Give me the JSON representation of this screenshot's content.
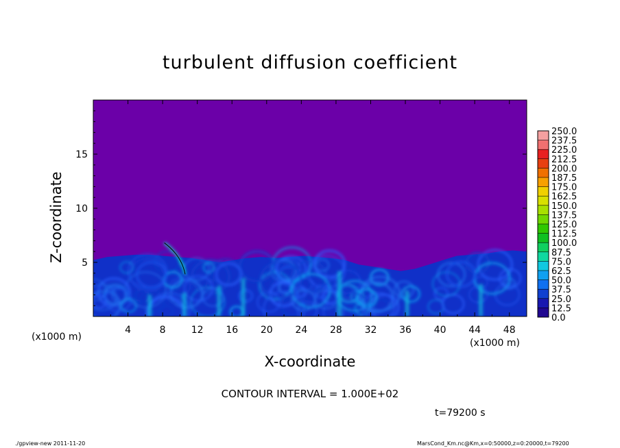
{
  "title": "turbulent diffusion coefficient",
  "chart_data": {
    "type": "heatmap",
    "title": "turbulent diffusion coefficient",
    "xlabel": "X-coordinate",
    "ylabel": "Z-coordinate",
    "x_unit_label": "(x1000 m)",
    "x_unit_label_right": "(x1000 m)",
    "xlim": [
      0,
      50
    ],
    "ylim": [
      0,
      20
    ],
    "x_ticks": [
      "4",
      "8",
      "12",
      "16",
      "20",
      "24",
      "28",
      "32",
      "36",
      "40",
      "44",
      "48"
    ],
    "y_ticks": [
      "5",
      "10",
      "15"
    ],
    "colorbar": {
      "levels": [
        "250.0",
        "237.5",
        "225.0",
        "212.5",
        "200.0",
        "187.5",
        "175.0",
        "162.5",
        "150.0",
        "137.5",
        "125.0",
        "112.5",
        "100.0",
        "87.5",
        "75.0",
        "62.5",
        "50.0",
        "37.5",
        "25.0",
        "12.5",
        "0.0"
      ],
      "colors": [
        "#f4a0a0",
        "#f07070",
        "#e82020",
        "#e84010",
        "#f07000",
        "#f8a000",
        "#f0d000",
        "#d8e000",
        "#a8e000",
        "#70d800",
        "#30c800",
        "#10c020",
        "#10d060",
        "#10d8a0",
        "#10c8e0",
        "#10a0f0",
        "#1070f0",
        "#1040d0",
        "#1818b0",
        "#200890"
      ],
      "background_color": "#6b00a8"
    },
    "boundary_layer_top_km": [
      5.2,
      5.5,
      5.6,
      5.7,
      5.7,
      5.6,
      5.5,
      5.4,
      5.2,
      5.0,
      5.2,
      5.4,
      5.5,
      5.4,
      5.5,
      5.6,
      5.5,
      5.4,
      5.2,
      4.8,
      4.6,
      4.4,
      4.2,
      4.4,
      4.8,
      5.2,
      5.6,
      5.7,
      5.8,
      6.0,
      6.1,
      6.0
    ]
  },
  "contour_interval": "CONTOUR INTERVAL = 1.000E+02",
  "time_label": "t=79200 s",
  "footer_left": "./gpview-new   2011-11-20",
  "footer_right": "MarsCond_Km.nc@Km,x=0:50000,z=0:20000,t=79200"
}
